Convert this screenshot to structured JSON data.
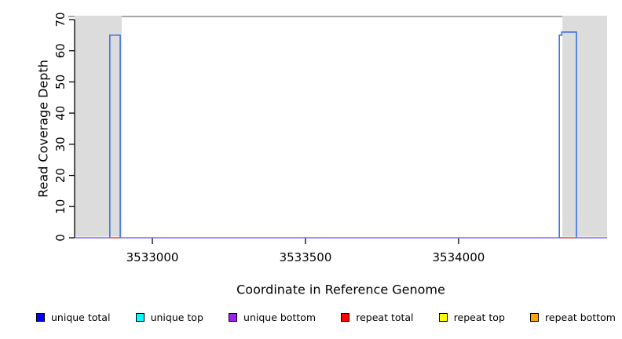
{
  "chart_data": {
    "type": "area",
    "title": "",
    "xlabel": "Coordinate in Reference Genome",
    "ylabel": "Read Coverage Depth",
    "xlim": [
      3532746,
      3534485
    ],
    "ylim": [
      0,
      71
    ],
    "x_ticks": [
      3533000,
      3533500,
      3534000
    ],
    "y_ticks": [
      0,
      10,
      20,
      30,
      40,
      50,
      60,
      70
    ],
    "grid": false,
    "repeat_regions": [
      {
        "start": 3532746,
        "end": 3532900
      },
      {
        "start": 3534339,
        "end": 3534485
      }
    ],
    "series": [
      {
        "name": "unique total",
        "steps": [
          {
            "from": 3532861,
            "to": 3532895,
            "depth": 65
          },
          {
            "from": 3534329,
            "to": 3534337,
            "depth": 65
          },
          {
            "from": 3534337,
            "to": 3534385,
            "depth": 66
          }
        ],
        "baseline_depth": 0
      },
      {
        "name": "unique top",
        "steps": [],
        "baseline_depth": 0
      },
      {
        "name": "unique bottom",
        "steps": [],
        "baseline_depth": 0
      },
      {
        "name": "repeat total",
        "steps": [],
        "baseline_depth": 0
      },
      {
        "name": "repeat top",
        "steps": [],
        "baseline_depth": 0
      },
      {
        "name": "repeat bottom",
        "steps": [],
        "baseline_depth": 0
      }
    ],
    "colors": {
      "repeat_region_fill": "#dcdcdc",
      "plot_top_line": "#8a8a8a",
      "axis": "#000000",
      "coverage_line": "#4577e0",
      "zero_line": "#7b6ff0",
      "zero_line_under_peaks": "#f26256"
    }
  },
  "legend": {
    "items": [
      {
        "label": "unique total",
        "color": "#0000ff"
      },
      {
        "label": "unique top",
        "color": "#00ffff"
      },
      {
        "label": "unique bottom",
        "color": "#a020f0"
      },
      {
        "label": "repeat total",
        "color": "#ff0000"
      },
      {
        "label": "repeat top",
        "color": "#ffff00"
      },
      {
        "label": "repeat bottom",
        "color": "#ffa500"
      }
    ]
  }
}
